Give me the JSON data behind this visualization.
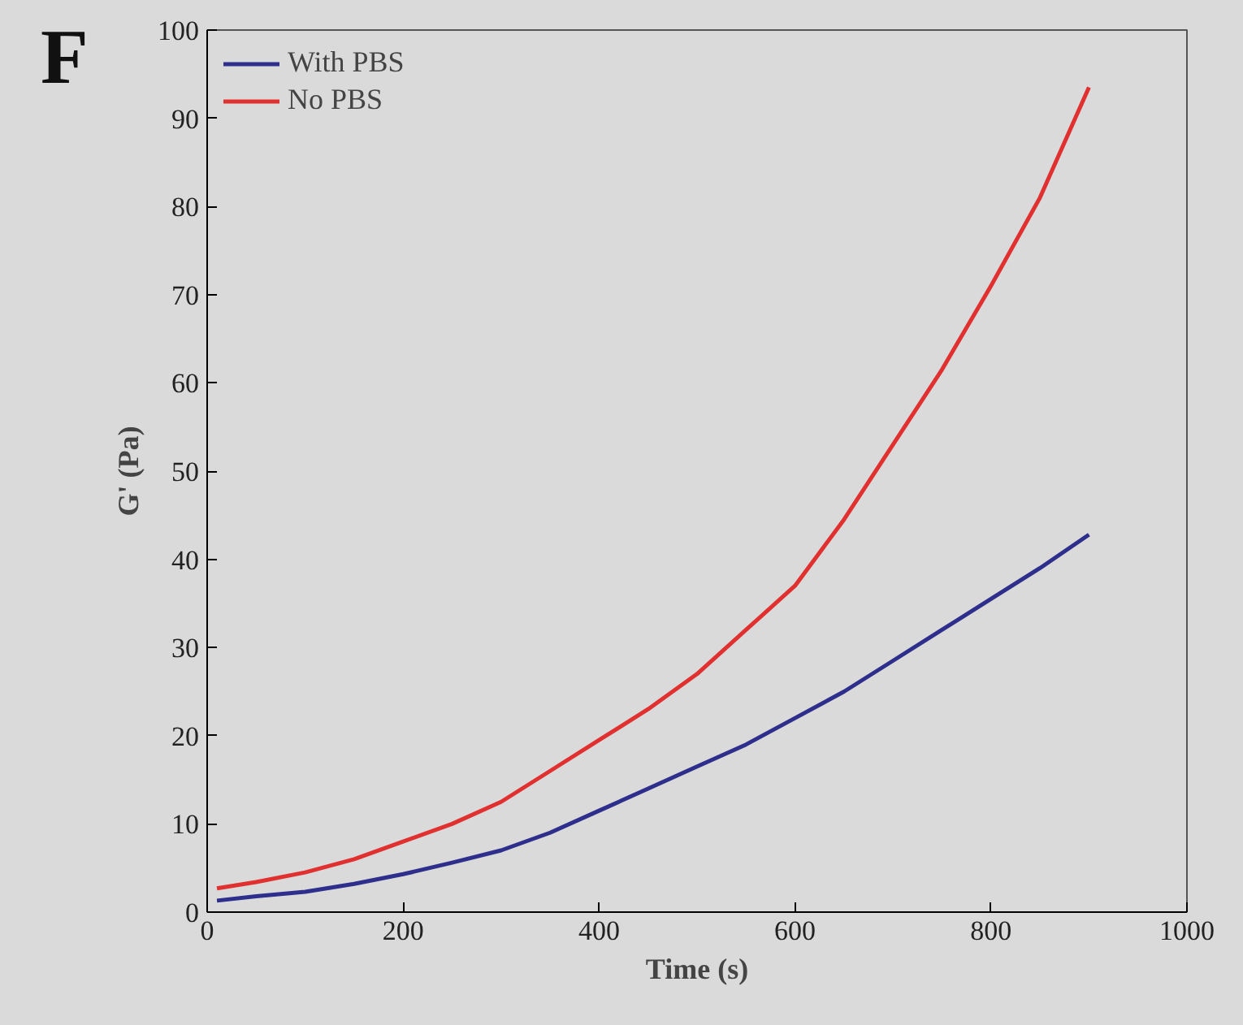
{
  "chart_data": {
    "type": "line",
    "xlabel": "Time (s)",
    "ylabel": "G' (Pa)",
    "annotations": [
      "F"
    ],
    "x": [
      10,
      50,
      100,
      150,
      200,
      250,
      300,
      350,
      400,
      450,
      500,
      550,
      600,
      650,
      700,
      750,
      800,
      850,
      900
    ],
    "series": [
      {
        "name": "With PBS",
        "color": "#2e2e8c",
        "values": [
          1.3,
          1.8,
          2.3,
          3.2,
          4.3,
          5.6,
          7,
          9,
          11.5,
          14,
          16.5,
          19,
          22,
          25,
          28.5,
          32,
          35.5,
          39,
          42.8
        ]
      },
      {
        "name": "No PBS",
        "color": "#e03030",
        "values": [
          2.7,
          3.4,
          4.5,
          6,
          8,
          10,
          12.5,
          16,
          19.5,
          23,
          27,
          32,
          37,
          44.5,
          53,
          61.5,
          71,
          81,
          93.5
        ]
      }
    ],
    "xlim": [
      0,
      1000
    ],
    "ylim": [
      0,
      100
    ],
    "xticks": [
      0,
      200,
      400,
      600,
      800,
      1000
    ],
    "yticks": [
      0,
      10,
      20,
      30,
      40,
      50,
      60,
      70,
      80,
      90,
      100
    ],
    "grid": false,
    "legend": "top left",
    "line_style": "solid"
  }
}
